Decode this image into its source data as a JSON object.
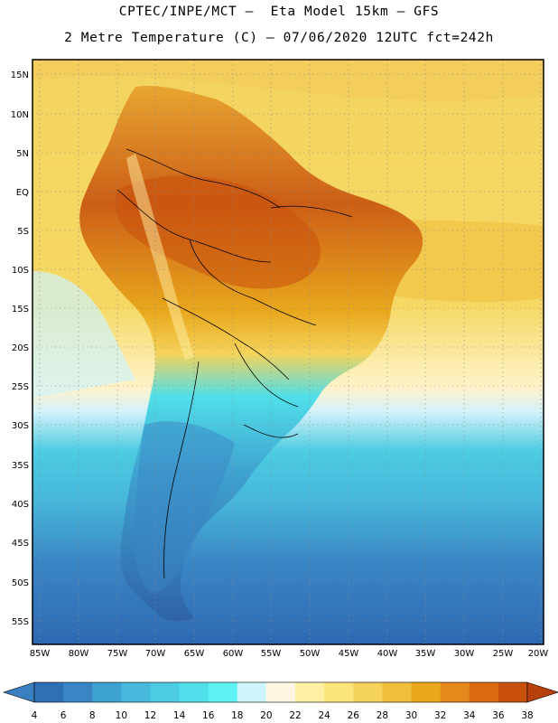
{
  "header": {
    "line1": "CPTEC/INPE/MCT –  Eta Model 15km – GFS",
    "line2": "2 Metre Temperature (C) – 07/06/2020 12UTC fct=242h"
  },
  "axes": {
    "lat_labels": [
      "15N",
      "10N",
      "5N",
      "EQ",
      "5S",
      "10S",
      "15S",
      "20S",
      "25S",
      "30S",
      "35S",
      "40S",
      "45S",
      "50S",
      "55S"
    ],
    "lon_labels": [
      "85W",
      "80W",
      "75W",
      "70W",
      "65W",
      "60W",
      "55W",
      "50W",
      "45W",
      "40W",
      "35W",
      "30W",
      "25W",
      "20W"
    ]
  },
  "colorbar": {
    "labels": [
      "4",
      "6",
      "8",
      "10",
      "12",
      "14",
      "16",
      "18",
      "20",
      "22",
      "24",
      "26",
      "28",
      "30",
      "32",
      "34",
      "36",
      "38"
    ],
    "below_color": "#3a7fc0",
    "above_color": "#b8400a",
    "colors": [
      "#2f6fb5",
      "#3a86c5",
      "#3fa3d1",
      "#46b8dc",
      "#4ccce2",
      "#50dfea",
      "#5ef2f4",
      "#cff4fb",
      "#fff7e3",
      "#fff0a4",
      "#fbe47a",
      "#f5d35a",
      "#eebe3c",
      "#e9a71c",
      "#e5891c",
      "#dc6a12",
      "#c8500c"
    ]
  }
}
